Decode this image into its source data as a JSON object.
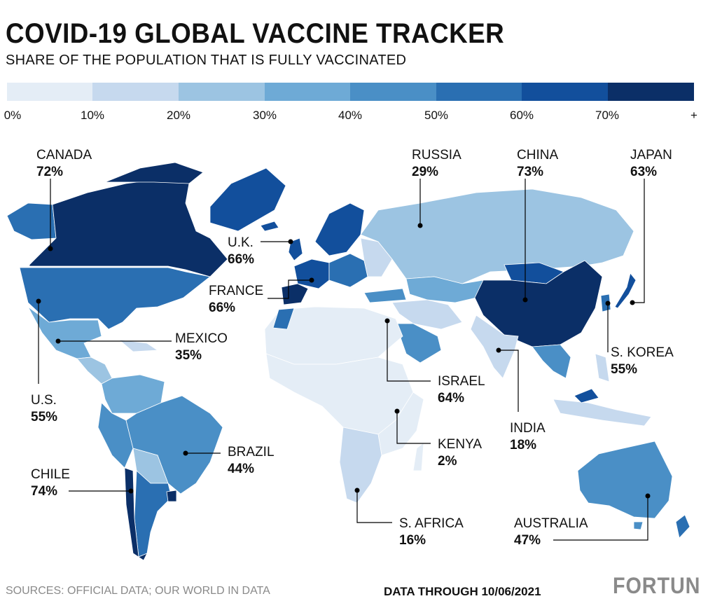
{
  "header": {
    "title": "COVID-19 GLOBAL VACCINE TRACKER",
    "subtitle": "SHARE OF THE POPULATION THAT IS FULLY VACCINATED"
  },
  "legend": {
    "bins": [
      {
        "label": "0%",
        "color": "#e4edf6"
      },
      {
        "label": "10%",
        "color": "#c6d9ee"
      },
      {
        "label": "20%",
        "color": "#9cc4e2"
      },
      {
        "label": "30%",
        "color": "#6eaad6"
      },
      {
        "label": "40%",
        "color": "#4a8fc6"
      },
      {
        "label": "50%",
        "color": "#2a6fb2"
      },
      {
        "label": "60%",
        "color": "#124f9c"
      },
      {
        "label": "70%",
        "color": "#0b2f67"
      }
    ],
    "end_label": "+"
  },
  "callouts": [
    {
      "name": "CANADA",
      "value": "72%"
    },
    {
      "name": "RUSSIA",
      "value": "29%"
    },
    {
      "name": "CHINA",
      "value": "73%"
    },
    {
      "name": "JAPAN",
      "value": "63%"
    },
    {
      "name": "U.K.",
      "value": "66%"
    },
    {
      "name": "FRANCE",
      "value": "66%"
    },
    {
      "name": "MEXICO",
      "value": "35%"
    },
    {
      "name": "S. KOREA",
      "value": "55%"
    },
    {
      "name": "ISRAEL",
      "value": "64%"
    },
    {
      "name": "U.S.",
      "value": "55%"
    },
    {
      "name": "INDIA",
      "value": "18%"
    },
    {
      "name": "BRAZIL",
      "value": "44%"
    },
    {
      "name": "KENYA",
      "value": "2%"
    },
    {
      "name": "CHILE",
      "value": "74%"
    },
    {
      "name": "S. AFRICA",
      "value": "16%"
    },
    {
      "name": "AUSTRALIA",
      "value": "47%"
    }
  ],
  "footer": {
    "sources": "SOURCES: OFFICIAL DATA; OUR WORLD IN DATA",
    "date": "DATA THROUGH 10/06/2021",
    "brand": "FORTUNE"
  }
}
